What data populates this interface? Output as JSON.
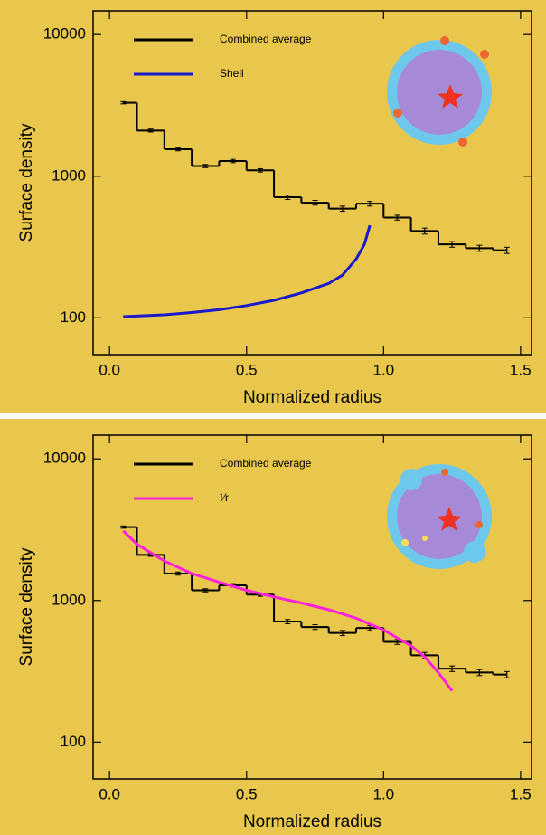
{
  "chart_data": [
    {
      "type": "line",
      "xlabel": "Normalized radius",
      "ylabel": "Surface density",
      "xlim": [
        -0.06,
        1.54
      ],
      "ylim": [
        55,
        14700
      ],
      "yscale": "log",
      "xticks": [
        {
          "value": 0,
          "label": "0.0"
        },
        0.5,
        {
          "value": 1,
          "label": "1.0"
        },
        1.5
      ],
      "yticks": [
        100,
        1000,
        10000
      ],
      "legend": "upper left",
      "series": [
        {
          "name": "Combined average",
          "color": "#000000",
          "style": "step",
          "x": [
            0.05,
            0.15,
            0.25,
            0.35,
            0.45,
            0.55,
            0.65,
            0.75,
            0.85,
            0.95,
            1.05,
            1.15,
            1.25,
            1.35,
            1.45
          ],
          "values": [
            3300,
            2100,
            1550,
            1180,
            1280,
            1100,
            710,
            650,
            590,
            640,
            510,
            410,
            330,
            310,
            300
          ],
          "errors": [
            60,
            50,
            40,
            30,
            35,
            30,
            25,
            25,
            25,
            25,
            20,
            20,
            15,
            15,
            15
          ]
        },
        {
          "name": "Shell",
          "color": "#1a1acc",
          "style": "line",
          "x": [
            0.05,
            0.2,
            0.3,
            0.4,
            0.5,
            0.6,
            0.7,
            0.8,
            0.85,
            0.9,
            0.93,
            0.95
          ],
          "values": [
            102,
            105,
            109,
            114,
            122,
            133,
            150,
            175,
            200,
            260,
            330,
            450
          ]
        }
      ]
    },
    {
      "type": "line",
      "xlabel": "Normalized radius",
      "ylabel": "Surface density",
      "xlim": [
        -0.06,
        1.54
      ],
      "ylim": [
        55,
        14700
      ],
      "yscale": "log",
      "xticks": [
        {
          "value": 0,
          "label": "0.0"
        },
        0.5,
        {
          "value": 1,
          "label": "1.0"
        },
        1.5
      ],
      "yticks": [
        100,
        1000,
        10000
      ],
      "legend": "upper left",
      "series": [
        {
          "name": "Combined average",
          "color": "#000000",
          "style": "step",
          "x": [
            0.05,
            0.15,
            0.25,
            0.35,
            0.45,
            0.55,
            0.65,
            0.75,
            0.85,
            0.95,
            1.05,
            1.15,
            1.25,
            1.35,
            1.45
          ],
          "values": [
            3300,
            2100,
            1550,
            1180,
            1280,
            1100,
            710,
            650,
            590,
            640,
            510,
            410,
            330,
            310,
            300
          ],
          "errors": [
            60,
            50,
            40,
            30,
            35,
            30,
            25,
            25,
            25,
            25,
            20,
            20,
            15,
            15,
            15
          ]
        },
        {
          "name": "¹⁄r",
          "color": "#ff22dd",
          "style": "line",
          "x": [
            0.05,
            0.1,
            0.2,
            0.3,
            0.4,
            0.5,
            0.6,
            0.7,
            0.8,
            0.9,
            1.0,
            1.1,
            1.15,
            1.2,
            1.25
          ],
          "values": [
            3100,
            2500,
            1900,
            1550,
            1350,
            1180,
            1060,
            960,
            860,
            750,
            620,
            480,
            400,
            310,
            230
          ]
        }
      ]
    }
  ]
}
